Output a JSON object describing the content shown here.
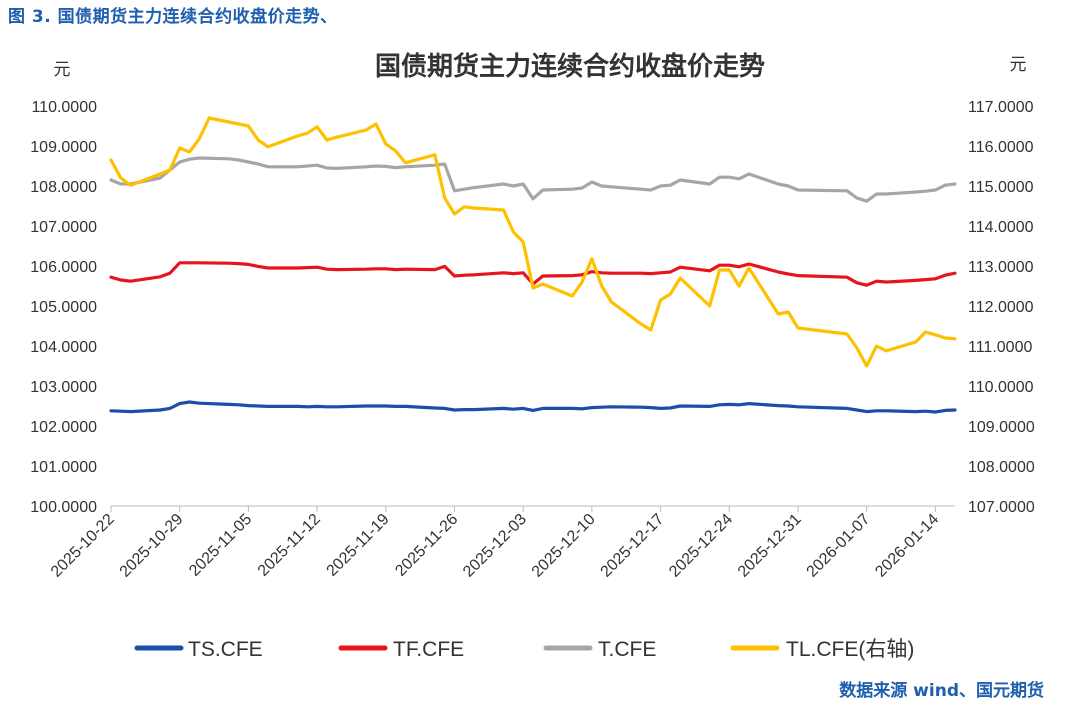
{
  "caption": "图 3. 国债期货主力连续合约收盘价走势、",
  "source": "数据来源 wind、国元期货",
  "chart_data": {
    "type": "line",
    "title": "国债期货主力连续合约收盘价走势",
    "ylabel_left": "元",
    "ylabel_right": "元",
    "ylim_left": [
      100,
      110
    ],
    "ylim_right": [
      107,
      117
    ],
    "yticks_left": [
      "100.0000",
      "101.0000",
      "102.0000",
      "103.0000",
      "104.0000",
      "105.0000",
      "106.0000",
      "107.0000",
      "108.0000",
      "109.0000",
      "110.0000"
    ],
    "yticks_right": [
      "107.0000",
      "108.0000",
      "109.0000",
      "110.0000",
      "111.0000",
      "112.0000",
      "113.0000",
      "114.0000",
      "115.0000",
      "116.0000",
      "117.0000"
    ],
    "x_ticks": [
      "2025-10-22",
      "2025-10-29",
      "2025-11-05",
      "2025-11-12",
      "2025-11-19",
      "2025-11-26",
      "2025-12-03",
      "2025-12-10",
      "2025-12-17",
      "2025-12-24",
      "2025-12-31",
      "2026-01-07",
      "2026-01-14"
    ],
    "x_start": "2025-10-22",
    "x_end": "2026-01-16",
    "series": [
      {
        "name": "TS.CFE",
        "axis": "left",
        "color": "#1a4ea8",
        "points": [
          [
            "2025-10-22",
            102.38
          ],
          [
            "2025-10-23",
            102.37
          ],
          [
            "2025-10-24",
            102.36
          ],
          [
            "2025-10-27",
            102.4
          ],
          [
            "2025-10-28",
            102.44
          ],
          [
            "2025-10-29",
            102.56
          ],
          [
            "2025-10-30",
            102.6
          ],
          [
            "2025-10-31",
            102.57
          ],
          [
            "2025-11-03",
            102.54
          ],
          [
            "2025-11-04",
            102.53
          ],
          [
            "2025-11-05",
            102.51
          ],
          [
            "2025-11-06",
            102.5
          ],
          [
            "2025-11-07",
            102.49
          ],
          [
            "2025-11-10",
            102.49
          ],
          [
            "2025-11-11",
            102.48
          ],
          [
            "2025-11-12",
            102.49
          ],
          [
            "2025-11-13",
            102.48
          ],
          [
            "2025-11-14",
            102.48
          ],
          [
            "2025-11-17",
            102.5
          ],
          [
            "2025-11-18",
            102.5
          ],
          [
            "2025-11-19",
            102.5
          ],
          [
            "2025-11-20",
            102.49
          ],
          [
            "2025-11-21",
            102.49
          ],
          [
            "2025-11-24",
            102.45
          ],
          [
            "2025-11-25",
            102.44
          ],
          [
            "2025-11-26",
            102.4
          ],
          [
            "2025-11-27",
            102.41
          ],
          [
            "2025-11-28",
            102.41
          ],
          [
            "2025-12-01",
            102.44
          ],
          [
            "2025-12-02",
            102.42
          ],
          [
            "2025-12-03",
            102.44
          ],
          [
            "2025-12-04",
            102.39
          ],
          [
            "2025-12-05",
            102.44
          ],
          [
            "2025-12-08",
            102.44
          ],
          [
            "2025-12-09",
            102.43
          ],
          [
            "2025-12-10",
            102.46
          ],
          [
            "2025-12-11",
            102.47
          ],
          [
            "2025-12-12",
            102.48
          ],
          [
            "2025-12-15",
            102.47
          ],
          [
            "2025-12-16",
            102.46
          ],
          [
            "2025-12-17",
            102.44
          ],
          [
            "2025-12-18",
            102.45
          ],
          [
            "2025-12-19",
            102.5
          ],
          [
            "2025-12-22",
            102.49
          ],
          [
            "2025-12-23",
            102.53
          ],
          [
            "2025-12-24",
            102.54
          ],
          [
            "2025-12-25",
            102.53
          ],
          [
            "2025-12-26",
            102.56
          ],
          [
            "2025-12-29",
            102.51
          ],
          [
            "2025-12-30",
            102.5
          ],
          [
            "2025-12-31",
            102.48
          ],
          [
            "2026-01-05",
            102.44
          ],
          [
            "2026-01-06",
            102.4
          ],
          [
            "2026-01-07",
            102.36
          ],
          [
            "2026-01-08",
            102.38
          ],
          [
            "2026-01-09",
            102.38
          ],
          [
            "2026-01-12",
            102.36
          ],
          [
            "2026-01-13",
            102.37
          ],
          [
            "2026-01-14",
            102.35
          ],
          [
            "2026-01-15",
            102.39
          ],
          [
            "2026-01-16",
            102.4
          ]
        ]
      },
      {
        "name": "TF.CFE",
        "axis": "left",
        "color": "#e8141c",
        "points": [
          [
            "2025-10-22",
            105.72
          ],
          [
            "2025-10-23",
            105.65
          ],
          [
            "2025-10-24",
            105.62
          ],
          [
            "2025-10-27",
            105.73
          ],
          [
            "2025-10-28",
            105.82
          ],
          [
            "2025-10-29",
            106.08
          ],
          [
            "2025-10-30",
            106.08
          ],
          [
            "2025-10-31",
            106.08
          ],
          [
            "2025-11-03",
            106.07
          ],
          [
            "2025-11-04",
            106.06
          ],
          [
            "2025-11-05",
            106.04
          ],
          [
            "2025-11-06",
            105.99
          ],
          [
            "2025-11-07",
            105.95
          ],
          [
            "2025-11-10",
            105.95
          ],
          [
            "2025-11-11",
            105.96
          ],
          [
            "2025-11-12",
            105.97
          ],
          [
            "2025-11-13",
            105.92
          ],
          [
            "2025-11-14",
            105.91
          ],
          [
            "2025-11-17",
            105.92
          ],
          [
            "2025-11-18",
            105.93
          ],
          [
            "2025-11-19",
            105.93
          ],
          [
            "2025-11-20",
            105.91
          ],
          [
            "2025-11-21",
            105.92
          ],
          [
            "2025-11-24",
            105.91
          ],
          [
            "2025-11-25",
            105.99
          ],
          [
            "2025-11-26",
            105.75
          ],
          [
            "2025-11-27",
            105.77
          ],
          [
            "2025-11-28",
            105.78
          ],
          [
            "2025-12-01",
            105.83
          ],
          [
            "2025-12-02",
            105.81
          ],
          [
            "2025-12-03",
            105.83
          ],
          [
            "2025-12-04",
            105.55
          ],
          [
            "2025-12-05",
            105.75
          ],
          [
            "2025-12-08",
            105.76
          ],
          [
            "2025-12-09",
            105.78
          ],
          [
            "2025-12-10",
            105.86
          ],
          [
            "2025-12-11",
            105.83
          ],
          [
            "2025-12-12",
            105.82
          ],
          [
            "2025-12-15",
            105.82
          ],
          [
            "2025-12-16",
            105.81
          ],
          [
            "2025-12-17",
            105.83
          ],
          [
            "2025-12-18",
            105.85
          ],
          [
            "2025-12-19",
            105.97
          ],
          [
            "2025-12-22",
            105.88
          ],
          [
            "2025-12-23",
            106.02
          ],
          [
            "2025-12-24",
            106.02
          ],
          [
            "2025-12-25",
            105.98
          ],
          [
            "2025-12-26",
            106.05
          ],
          [
            "2025-12-29",
            105.85
          ],
          [
            "2025-12-30",
            105.8
          ],
          [
            "2025-12-31",
            105.76
          ],
          [
            "2026-01-05",
            105.72
          ],
          [
            "2026-01-06",
            105.58
          ],
          [
            "2026-01-07",
            105.52
          ],
          [
            "2026-01-08",
            105.62
          ],
          [
            "2026-01-09",
            105.6
          ],
          [
            "2026-01-12",
            105.64
          ],
          [
            "2026-01-13",
            105.66
          ],
          [
            "2026-01-14",
            105.68
          ],
          [
            "2026-01-15",
            105.77
          ],
          [
            "2026-01-16",
            105.82
          ]
        ]
      },
      {
        "name": "T.CFE",
        "axis": "left",
        "color": "#a6a6a6",
        "points": [
          [
            "2025-10-22",
            108.15
          ],
          [
            "2025-10-23",
            108.05
          ],
          [
            "2025-10-24",
            108.05
          ],
          [
            "2025-10-27",
            108.2
          ],
          [
            "2025-10-28",
            108.4
          ],
          [
            "2025-10-29",
            108.6
          ],
          [
            "2025-10-30",
            108.67
          ],
          [
            "2025-10-31",
            108.7
          ],
          [
            "2025-11-03",
            108.68
          ],
          [
            "2025-11-04",
            108.65
          ],
          [
            "2025-11-05",
            108.6
          ],
          [
            "2025-11-06",
            108.55
          ],
          [
            "2025-11-07",
            108.48
          ],
          [
            "2025-11-10",
            108.48
          ],
          [
            "2025-11-11",
            108.5
          ],
          [
            "2025-11-12",
            108.52
          ],
          [
            "2025-11-13",
            108.45
          ],
          [
            "2025-11-14",
            108.44
          ],
          [
            "2025-11-17",
            108.48
          ],
          [
            "2025-11-18",
            108.5
          ],
          [
            "2025-11-19",
            108.49
          ],
          [
            "2025-11-20",
            108.46
          ],
          [
            "2025-11-21",
            108.48
          ],
          [
            "2025-11-24",
            108.52
          ],
          [
            "2025-11-25",
            108.55
          ],
          [
            "2025-11-26",
            107.88
          ],
          [
            "2025-11-27",
            107.92
          ],
          [
            "2025-11-28",
            107.96
          ],
          [
            "2025-12-01",
            108.05
          ],
          [
            "2025-12-02",
            108.0
          ],
          [
            "2025-12-03",
            108.05
          ],
          [
            "2025-12-04",
            107.68
          ],
          [
            "2025-12-05",
            107.9
          ],
          [
            "2025-12-08",
            107.92
          ],
          [
            "2025-12-09",
            107.95
          ],
          [
            "2025-12-10",
            108.1
          ],
          [
            "2025-12-11",
            108.0
          ],
          [
            "2025-12-12",
            107.98
          ],
          [
            "2025-12-15",
            107.92
          ],
          [
            "2025-12-16",
            107.9
          ],
          [
            "2025-12-17",
            108.0
          ],
          [
            "2025-12-18",
            108.02
          ],
          [
            "2025-12-19",
            108.15
          ],
          [
            "2025-12-22",
            108.05
          ],
          [
            "2025-12-23",
            108.22
          ],
          [
            "2025-12-24",
            108.22
          ],
          [
            "2025-12-25",
            108.18
          ],
          [
            "2025-12-26",
            108.3
          ],
          [
            "2025-12-29",
            108.05
          ],
          [
            "2025-12-30",
            108.0
          ],
          [
            "2025-12-31",
            107.9
          ],
          [
            "2026-01-05",
            107.88
          ],
          [
            "2026-01-06",
            107.7
          ],
          [
            "2026-01-07",
            107.62
          ],
          [
            "2026-01-08",
            107.8
          ],
          [
            "2026-01-09",
            107.8
          ],
          [
            "2026-01-12",
            107.85
          ],
          [
            "2026-01-13",
            107.87
          ],
          [
            "2026-01-14",
            107.9
          ],
          [
            "2026-01-15",
            108.02
          ],
          [
            "2026-01-16",
            108.05
          ]
        ]
      },
      {
        "name": "TL.CFE(右轴)",
        "axis": "right",
        "color": "#ffc000",
        "points": [
          [
            "2025-10-22",
            115.65
          ],
          [
            "2025-10-23",
            115.2
          ],
          [
            "2025-10-24",
            115.02
          ],
          [
            "2025-10-27",
            115.3
          ],
          [
            "2025-10-28",
            115.4
          ],
          [
            "2025-10-29",
            115.95
          ],
          [
            "2025-10-30",
            115.85
          ],
          [
            "2025-10-31",
            116.18
          ],
          [
            "2025-11-01",
            116.7
          ],
          [
            "2025-11-03",
            116.6
          ],
          [
            "2025-11-04",
            116.55
          ],
          [
            "2025-11-05",
            116.5
          ],
          [
            "2025-11-06",
            116.15
          ],
          [
            "2025-11-07",
            115.98
          ],
          [
            "2025-11-10",
            116.25
          ],
          [
            "2025-11-11",
            116.32
          ],
          [
            "2025-11-12",
            116.48
          ],
          [
            "2025-11-13",
            116.15
          ],
          [
            "2025-11-14",
            116.22
          ],
          [
            "2025-11-17",
            116.4
          ],
          [
            "2025-11-18",
            116.55
          ],
          [
            "2025-11-19",
            116.05
          ],
          [
            "2025-11-20",
            115.88
          ],
          [
            "2025-11-21",
            115.58
          ],
          [
            "2025-11-24",
            115.78
          ],
          [
            "2025-11-25",
            114.7
          ],
          [
            "2025-11-26",
            114.3
          ],
          [
            "2025-11-27",
            114.48
          ],
          [
            "2025-11-28",
            114.45
          ],
          [
            "2025-12-01",
            114.4
          ],
          [
            "2025-12-02",
            113.85
          ],
          [
            "2025-12-03",
            113.6
          ],
          [
            "2025-12-04",
            112.45
          ],
          [
            "2025-12-05",
            112.55
          ],
          [
            "2025-12-08",
            112.25
          ],
          [
            "2025-12-09",
            112.6
          ],
          [
            "2025-12-10",
            113.18
          ],
          [
            "2025-12-11",
            112.5
          ],
          [
            "2025-12-12",
            112.1
          ],
          [
            "2025-12-15",
            111.55
          ],
          [
            "2025-12-16",
            111.4
          ],
          [
            "2025-12-17",
            112.15
          ],
          [
            "2025-12-18",
            112.3
          ],
          [
            "2025-12-19",
            112.7
          ],
          [
            "2025-12-22",
            112.0
          ],
          [
            "2025-12-23",
            112.9
          ],
          [
            "2025-12-24",
            112.9
          ],
          [
            "2025-12-25",
            112.5
          ],
          [
            "2025-12-26",
            112.95
          ],
          [
            "2025-12-29",
            111.8
          ],
          [
            "2025-12-30",
            111.85
          ],
          [
            "2025-12-31",
            111.45
          ],
          [
            "2026-01-05",
            111.3
          ],
          [
            "2026-01-06",
            110.95
          ],
          [
            "2026-01-07",
            110.5
          ],
          [
            "2026-01-08",
            111.0
          ],
          [
            "2026-01-09",
            110.88
          ],
          [
            "2026-01-12",
            111.1
          ],
          [
            "2026-01-13",
            111.35
          ],
          [
            "2026-01-14",
            111.28
          ],
          [
            "2026-01-15",
            111.2
          ],
          [
            "2026-01-16",
            111.18
          ]
        ]
      }
    ]
  }
}
